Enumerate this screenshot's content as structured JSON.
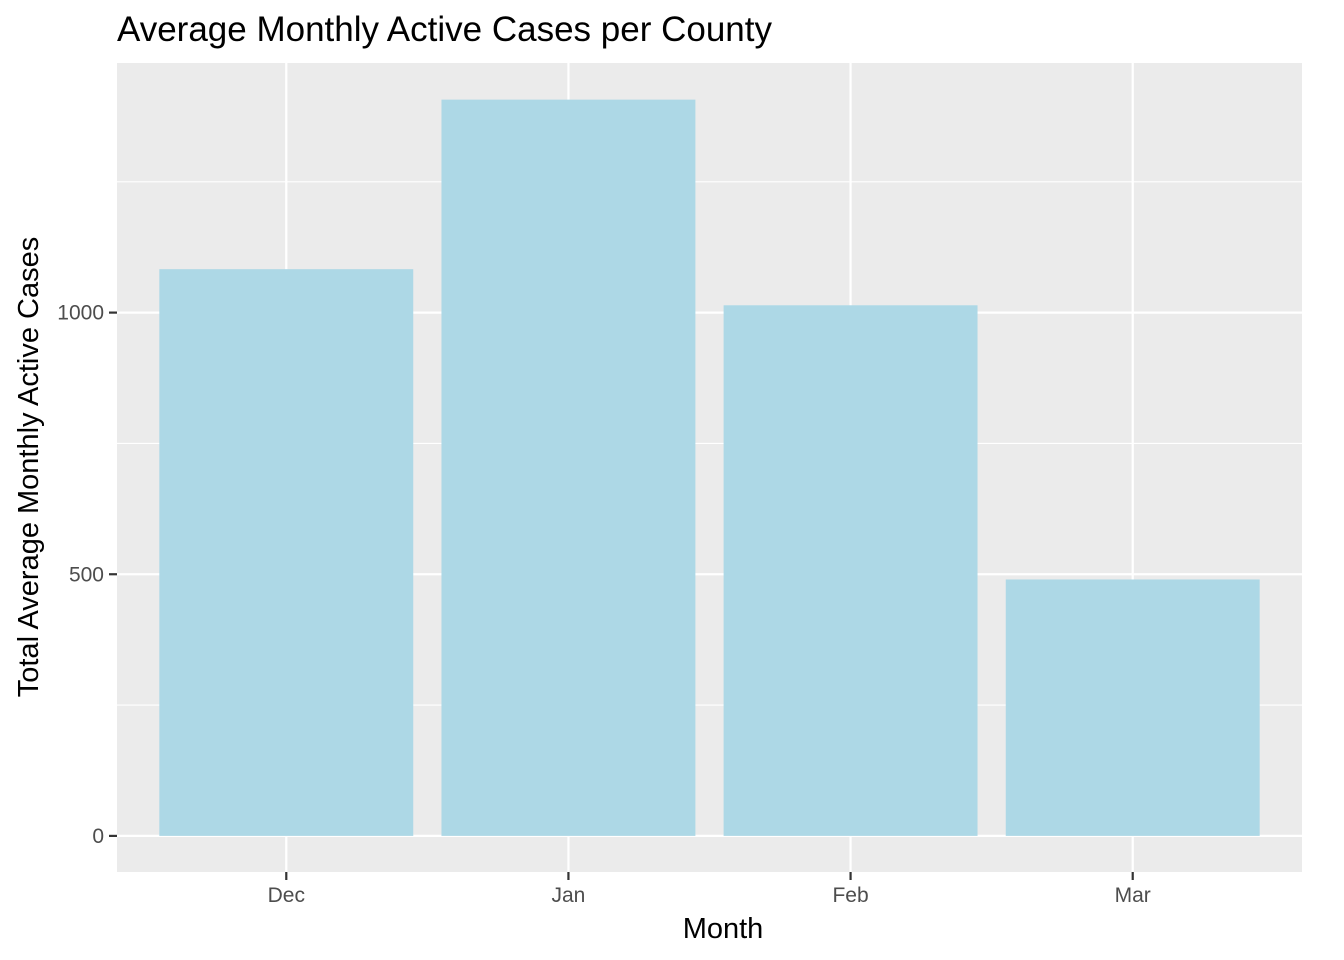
{
  "chart_data": {
    "type": "bar",
    "title": "Average Monthly Active Cases per County",
    "xlabel": "Month",
    "ylabel": "Total Average Monthly Active Cases",
    "categories": [
      "Dec",
      "Jan",
      "Feb",
      "Mar"
    ],
    "values": [
      1083,
      1407,
      1014,
      490
    ],
    "ylim": [
      -69,
      1477
    ],
    "y_ticks": [
      0,
      500,
      1000
    ],
    "y_tick_labels": [
      "0",
      "500",
      "1000"
    ],
    "grid": true,
    "legend": "none",
    "colors": {
      "bar": "#add8e6",
      "panel": "#ebebeb",
      "grid": "#ffffff",
      "tick": "#333333"
    }
  }
}
